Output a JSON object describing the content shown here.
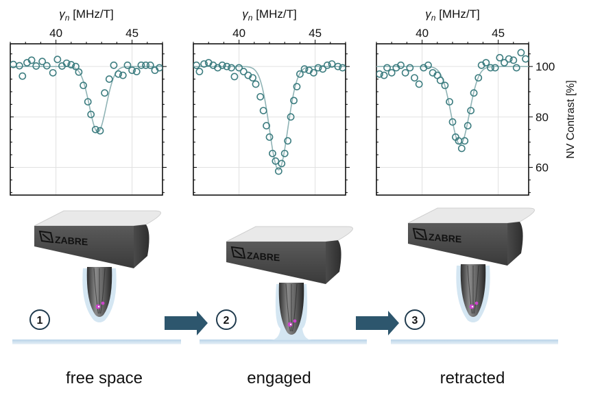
{
  "chart_data": [
    {
      "type": "scatter",
      "panel": "free space",
      "xlabel": "γn [MHz/T]",
      "xlabel_var": "γ",
      "xlabel_sub": "n",
      "xlabel_unit": "[MHz/T]",
      "xlim": [
        37.0,
        47.0
      ],
      "ylim": [
        49,
        109
      ],
      "xticks": [
        40,
        45
      ],
      "yticks": [
        60,
        80,
        100
      ],
      "points": [
        [
          37.2,
          100.8
        ],
        [
          37.6,
          100.3
        ],
        [
          37.8,
          96.2
        ],
        [
          38.1,
          101.5
        ],
        [
          38.4,
          102.5
        ],
        [
          38.7,
          100.2
        ],
        [
          39.1,
          102.0
        ],
        [
          39.4,
          100.3
        ],
        [
          39.8,
          97.5
        ],
        [
          40.1,
          102.8
        ],
        [
          40.4,
          100.2
        ],
        [
          40.7,
          101.3
        ],
        [
          41.0,
          100.7
        ],
        [
          41.3,
          100.0
        ],
        [
          41.5,
          97.8
        ],
        [
          41.8,
          92.5
        ],
        [
          42.1,
          86.0
        ],
        [
          42.3,
          81.0
        ],
        [
          42.6,
          75.0
        ],
        [
          42.9,
          74.5
        ],
        [
          43.2,
          89.5
        ],
        [
          43.5,
          95.0
        ],
        [
          43.8,
          100.5
        ],
        [
          44.1,
          97.0
        ],
        [
          44.4,
          96.5
        ],
        [
          44.7,
          100.5
        ],
        [
          45.0,
          98.5
        ],
        [
          45.3,
          98.0
        ],
        [
          45.6,
          100.5
        ],
        [
          45.9,
          100.5
        ],
        [
          46.2,
          100.5
        ],
        [
          46.5,
          98.5
        ],
        [
          46.8,
          99.5
        ]
      ],
      "fit": {
        "baseline": 100,
        "depth": 26,
        "center": 42.75,
        "sigma": 0.55
      }
    },
    {
      "type": "scatter",
      "panel": "engaged",
      "xlabel": "γn [MHz/T]",
      "xlabel_var": "γ",
      "xlabel_sub": "n",
      "xlabel_unit": "[MHz/T]",
      "xlim": [
        37.0,
        47.0
      ],
      "ylim": [
        49,
        109
      ],
      "xticks": [
        40,
        45
      ],
      "yticks": [
        60,
        80,
        100
      ],
      "points": [
        [
          37.2,
          100.5
        ],
        [
          37.4,
          98.0
        ],
        [
          37.7,
          101.0
        ],
        [
          38.0,
          101.5
        ],
        [
          38.3,
          100.5
        ],
        [
          38.6,
          99.5
        ],
        [
          38.9,
          100.5
        ],
        [
          39.2,
          100.0
        ],
        [
          39.5,
          99.5
        ],
        [
          39.7,
          96.0
        ],
        [
          40.0,
          99.5
        ],
        [
          40.3,
          98.0
        ],
        [
          40.6,
          96.5
        ],
        [
          40.9,
          95.5
        ],
        [
          41.1,
          93.0
        ],
        [
          41.4,
          88.0
        ],
        [
          41.6,
          82.5
        ],
        [
          41.8,
          76.5
        ],
        [
          42.0,
          72.0
        ],
        [
          42.2,
          65.5
        ],
        [
          42.4,
          62.5
        ],
        [
          42.6,
          58.5
        ],
        [
          42.8,
          61.5
        ],
        [
          43.0,
          65.5
        ],
        [
          43.2,
          70.5
        ],
        [
          43.4,
          80.0
        ],
        [
          43.6,
          86.5
        ],
        [
          43.8,
          92.0
        ],
        [
          44.0,
          97.0
        ],
        [
          44.3,
          99.0
        ],
        [
          44.6,
          98.5
        ],
        [
          44.9,
          97.5
        ],
        [
          45.2,
          99.5
        ],
        [
          45.5,
          99.0
        ],
        [
          45.8,
          100.5
        ],
        [
          46.1,
          101.0
        ],
        [
          46.5,
          100.0
        ],
        [
          46.8,
          99.5
        ]
      ],
      "fit": {
        "baseline": 100,
        "depth": 41,
        "center": 42.6,
        "sigma": 0.6
      }
    },
    {
      "type": "scatter",
      "panel": "retracted",
      "xlabel": "γn [MHz/T]",
      "xlabel_var": "γ",
      "xlabel_sub": "n",
      "xlabel_unit": "[MHz/T]",
      "ylabel": "NV Contrast [%]",
      "xlim": [
        37.0,
        47.0
      ],
      "ylim": [
        49,
        109
      ],
      "xticks": [
        40,
        45
      ],
      "yticks": [
        60,
        80,
        100
      ],
      "points": [
        [
          37.2,
          97.0
        ],
        [
          37.5,
          96.5
        ],
        [
          37.7,
          99.5
        ],
        [
          38.0,
          97.5
        ],
        [
          38.3,
          99.5
        ],
        [
          38.6,
          100.5
        ],
        [
          38.9,
          97.5
        ],
        [
          39.2,
          99.5
        ],
        [
          39.5,
          95.5
        ],
        [
          39.8,
          93.0
        ],
        [
          40.1,
          99.5
        ],
        [
          40.4,
          100.5
        ],
        [
          40.7,
          97.5
        ],
        [
          41.0,
          96.5
        ],
        [
          41.2,
          94.5
        ],
        [
          41.5,
          92.5
        ],
        [
          41.8,
          86.0
        ],
        [
          42.0,
          78.0
        ],
        [
          42.2,
          72.0
        ],
        [
          42.4,
          70.5
        ],
        [
          42.6,
          67.5
        ],
        [
          42.8,
          70.5
        ],
        [
          43.0,
          76.5
        ],
        [
          43.2,
          82.5
        ],
        [
          43.4,
          89.5
        ],
        [
          43.7,
          95.5
        ],
        [
          43.9,
          100.5
        ],
        [
          44.2,
          101.5
        ],
        [
          44.5,
          99.5
        ],
        [
          44.8,
          99.5
        ],
        [
          45.1,
          103.5
        ],
        [
          45.4,
          101.5
        ],
        [
          45.7,
          103.0
        ],
        [
          46.0,
          102.5
        ],
        [
          46.2,
          99.5
        ],
        [
          46.5,
          105.5
        ],
        [
          46.8,
          103.0
        ]
      ],
      "fit": {
        "baseline": 100,
        "depth": 31,
        "center": 42.5,
        "sigma": 0.6
      }
    }
  ],
  "steps": [
    {
      "number": "1",
      "caption": "free space"
    },
    {
      "number": "2",
      "caption": "engaged"
    },
    {
      "number": "3",
      "caption": "retracted"
    }
  ],
  "logo_text": "ZABRE",
  "colors": {
    "marker": "#3d7d80",
    "fit": "#8fb3b5",
    "arrow": "#2d566d",
    "surface": "#c9dcec",
    "glow": "#cfe3f1",
    "nv": "#cc44cc"
  }
}
